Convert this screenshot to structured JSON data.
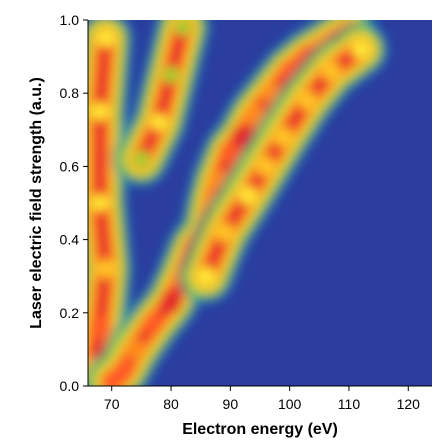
{
  "chart_data": {
    "type": "heatmap",
    "title": "",
    "xlabel": "Electron energy (eV)",
    "ylabel": "Laser electric field strength (a.u.)",
    "xlim": [
      66,
      124
    ],
    "ylim": [
      0.0,
      1.0
    ],
    "x_ticks": [
      70,
      80,
      90,
      100,
      110,
      120
    ],
    "x_tick_labels": [
      "70",
      "80",
      "90",
      "100",
      "110",
      "120"
    ],
    "y_ticks": [
      0.0,
      0.2,
      0.4,
      0.6,
      0.8,
      1.0
    ],
    "y_tick_labels": [
      "0.0",
      "0.2",
      "0.4",
      "0.6",
      "0.8",
      "1.0"
    ],
    "grid": false,
    "legend": "none",
    "colormap": [
      "#2b3d9e",
      "#1f7fd6",
      "#0fb46a",
      "#9ed030",
      "#ffe834",
      "#ffc526",
      "#ff8a1e",
      "#ff5a26",
      "#e4282a"
    ],
    "background_color": "#2b3d9e",
    "ridges": [
      {
        "name": "",
        "points": [
          [
            67,
            0.05,
            0.65
          ],
          [
            68,
            0.16,
            0.85
          ],
          [
            69,
            0.32,
            0.6
          ],
          [
            68,
            0.5,
            0.45
          ],
          [
            68,
            0.75,
            0.5
          ],
          [
            69,
            0.95,
            0.5
          ]
        ]
      },
      {
        "name": "",
        "points": [
          [
            70,
            0.01,
            0.9
          ],
          [
            72,
            0.04,
            0.85
          ],
          [
            74,
            0.1,
            0.75
          ],
          [
            77,
            0.17,
            0.85
          ],
          [
            80,
            0.23,
            0.95
          ],
          [
            82,
            0.3,
            0.8
          ],
          [
            84,
            0.38,
            0.85
          ],
          [
            86,
            0.42,
            1.0
          ],
          [
            87,
            0.5,
            0.8
          ],
          [
            88,
            0.56,
            0.8
          ],
          [
            90,
            0.64,
            0.9
          ],
          [
            92,
            0.68,
            0.95
          ],
          [
            94,
            0.74,
            0.8
          ],
          [
            97,
            0.8,
            0.75
          ],
          [
            100,
            0.86,
            0.85
          ],
          [
            103,
            0.9,
            0.9
          ],
          [
            106,
            0.93,
            0.8
          ],
          [
            110,
            0.97,
            0.7
          ]
        ]
      },
      {
        "name": "",
        "points": [
          [
            86,
            0.3,
            0.55
          ],
          [
            89,
            0.42,
            0.6
          ],
          [
            93,
            0.52,
            0.55
          ],
          [
            96,
            0.6,
            0.6
          ],
          [
            99,
            0.68,
            0.65
          ],
          [
            103,
            0.78,
            0.6
          ],
          [
            107,
            0.86,
            0.6
          ],
          [
            112,
            0.92,
            0.55
          ]
        ]
      },
      {
        "name": "",
        "points": [
          [
            75,
            0.62,
            0.4
          ],
          [
            78,
            0.72,
            0.45
          ],
          [
            80,
            0.85,
            0.4
          ],
          [
            82,
            0.98,
            0.4
          ]
        ]
      }
    ]
  }
}
